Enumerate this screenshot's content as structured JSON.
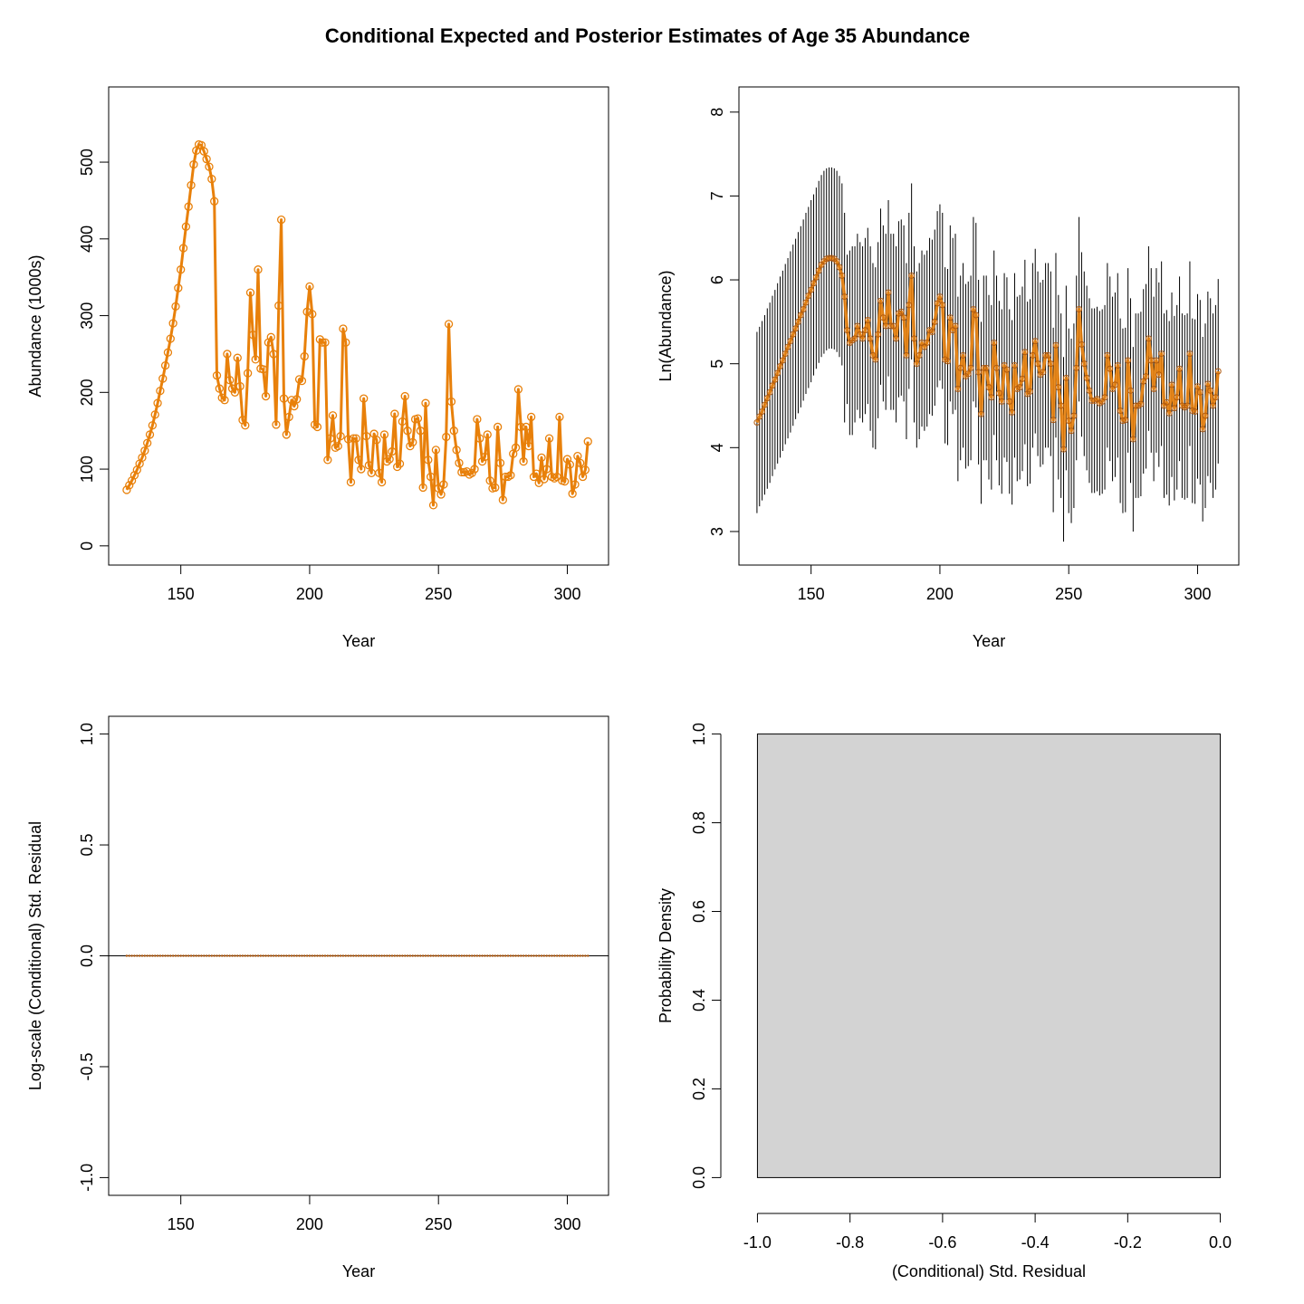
{
  "title": "Conditional Expected and Posterior Estimates of Age 35 Abundance",
  "colors": {
    "series": "#e8800a",
    "series_dark": "#b05a10",
    "interval": "#000000",
    "hist_fill": "#d3d3d3",
    "axis": "#000000"
  },
  "chart_data": [
    {
      "type": "line",
      "xlabel": "Year",
      "ylabel": "Abundance (1000s)",
      "xlim": [
        122,
        316
      ],
      "ylim": [
        -25,
        598
      ],
      "xticks": [
        150,
        200,
        250,
        300
      ],
      "xticklabels": [
        "150",
        "200",
        "250",
        "300"
      ],
      "yticks": [
        0,
        100,
        200,
        300,
        400,
        500
      ],
      "yticklabels": [
        "0",
        "100",
        "200",
        "300",
        "400",
        "500"
      ],
      "marker": "circle-open",
      "x": [
        129,
        130,
        131,
        132,
        133,
        134,
        135,
        136,
        137,
        138,
        139,
        140,
        141,
        142,
        143,
        144,
        145,
        146,
        147,
        148,
        149,
        150,
        151,
        152,
        153,
        154,
        155,
        156,
        157,
        158,
        159,
        160,
        161,
        162,
        163,
        164,
        165,
        166,
        167,
        168,
        169,
        170,
        171,
        172,
        173,
        174,
        175,
        176,
        177,
        178,
        179,
        180,
        181,
        182,
        183,
        184,
        185,
        186,
        187,
        188,
        189,
        190,
        191,
        192,
        193,
        194,
        195,
        196,
        197,
        198,
        199,
        200,
        201,
        202,
        203,
        204,
        205,
        206,
        207,
        208,
        209,
        210,
        211,
        212,
        213,
        214,
        215,
        216,
        217,
        218,
        219,
        220,
        221,
        222,
        223,
        224,
        225,
        226,
        227,
        228,
        229,
        230,
        231,
        232,
        233,
        234,
        235,
        236,
        237,
        238,
        239,
        240,
        241,
        242,
        243,
        244,
        245,
        246,
        247,
        248,
        249,
        250,
        251,
        252,
        253,
        254,
        255,
        256,
        257,
        258,
        259,
        260,
        261,
        262,
        263,
        264,
        265,
        266,
        267,
        268,
        269,
        270,
        271,
        272,
        273,
        274,
        275,
        276,
        277,
        278,
        279,
        280,
        281,
        282,
        283,
        284,
        285,
        286,
        287,
        288,
        289,
        290,
        291,
        292,
        293,
        294,
        295,
        296,
        297,
        298,
        299,
        300,
        301,
        302,
        303,
        304,
        305,
        306,
        307,
        308
      ],
      "y": [
        73,
        79,
        85,
        92,
        99,
        107,
        115,
        124,
        134,
        145,
        157,
        171,
        186,
        202,
        218,
        235,
        252,
        270,
        290,
        312,
        336,
        360,
        388,
        416,
        442,
        470,
        497,
        515,
        523,
        522,
        514,
        504,
        494,
        478,
        449,
        222,
        205,
        193,
        190,
        250,
        216,
        205,
        200,
        245,
        208,
        164,
        157,
        225,
        330,
        275,
        243,
        360,
        231,
        230,
        195,
        265,
        272,
        250,
        158,
        313,
        425,
        192,
        145,
        168,
        190,
        182,
        191,
        217,
        215,
        247,
        305,
        338,
        302,
        158,
        155,
        269,
        265,
        265,
        112,
        140,
        170,
        128,
        130,
        143,
        283,
        265,
        139,
        83,
        140,
        140,
        112,
        100,
        192,
        143,
        105,
        95,
        146,
        138,
        95,
        83,
        145,
        110,
        113,
        123,
        172,
        103,
        107,
        162,
        195,
        150,
        130,
        135,
        165,
        166,
        150,
        76,
        186,
        112,
        90,
        53,
        125,
        75,
        67,
        80,
        142,
        289,
        188,
        150,
        125,
        108,
        96,
        96,
        97,
        93,
        95,
        100,
        165,
        140,
        110,
        116,
        145,
        85,
        75,
        76,
        155,
        108,
        60,
        90,
        90,
        92,
        120,
        128,
        204,
        155,
        110,
        155,
        130,
        168,
        90,
        94,
        82,
        115,
        87,
        100,
        140,
        90,
        88,
        90,
        168,
        85,
        84,
        113,
        106,
        68,
        80,
        117,
        108,
        90,
        99,
        136
      ]
    },
    {
      "type": "line",
      "xlabel": "Year",
      "ylabel": "Ln(Abundance)",
      "xlim": [
        122,
        316
      ],
      "ylim": [
        2.6,
        8.3
      ],
      "xticks": [
        150,
        200,
        250,
        300
      ],
      "xticklabels": [
        "150",
        "200",
        "250",
        "300"
      ],
      "yticks": [
        3,
        4,
        5,
        6,
        7,
        8
      ],
      "yticklabels": [
        "3",
        "4",
        "5",
        "6",
        "7",
        "8"
      ],
      "intervals": "vertical segment per year (lower, upper)",
      "series_ln": [
        4.3,
        4.37,
        4.43,
        4.51,
        4.59,
        4.66,
        4.74,
        4.81,
        4.89,
        4.97,
        5.04,
        5.12,
        5.2,
        5.27,
        5.35,
        5.42,
        5.5,
        5.58,
        5.65,
        5.73,
        5.81,
        5.88,
        5.96,
        6.03,
        6.11,
        6.18,
        6.22,
        6.25,
        6.26,
        6.26,
        6.25,
        6.22,
        6.15,
        6.05,
        5.8,
        5.4,
        5.25,
        5.28,
        5.3,
        5.45,
        5.35,
        5.3,
        5.4,
        5.52,
        5.3,
        5.1,
        5.05,
        5.35,
        5.75,
        5.55,
        5.45,
        5.85,
        5.45,
        5.45,
        5.3,
        5.6,
        5.62,
        5.55,
        5.1,
        5.7,
        6.05,
        5.3,
        5.0,
        5.1,
        5.25,
        5.2,
        5.25,
        5.4,
        5.38,
        5.5,
        5.72,
        5.8,
        5.7,
        5.05,
        5.03,
        5.55,
        5.4,
        5.45,
        4.7,
        4.95,
        5.1,
        4.85,
        4.88,
        4.95,
        5.65,
        5.58,
        4.9,
        4.4,
        4.95,
        4.95,
        4.72,
        4.6,
        5.25,
        4.95,
        4.65,
        4.55,
        4.98,
        4.93,
        4.55,
        4.42,
        4.98,
        4.7,
        4.72,
        4.82,
        5.14,
        4.64,
        4.67,
        5.1,
        5.27,
        5.0,
        4.87,
        4.9,
        5.1,
        5.1,
        5.0,
        4.33,
        5.22,
        4.72,
        4.5,
        3.98,
        4.83,
        4.32,
        4.2,
        4.38,
        4.95,
        5.65,
        5.23,
        5.0,
        4.83,
        4.68,
        4.56,
        4.56,
        4.58,
        4.53,
        4.55,
        4.6,
        5.1,
        4.94,
        4.7,
        4.75,
        4.98,
        4.44,
        4.32,
        4.33,
        5.04,
        4.68,
        4.1,
        4.5,
        4.5,
        4.52,
        4.79,
        4.85,
        5.3,
        5.04,
        4.7,
        5.04,
        4.87,
        5.12,
        4.5,
        4.54,
        4.41,
        4.75,
        4.47,
        4.6,
        4.94,
        4.5,
        4.48,
        4.5,
        5.12,
        4.44,
        4.43,
        4.73,
        4.66,
        4.22,
        4.38,
        4.76,
        4.68,
        4.5,
        4.6,
        4.91
      ],
      "lower": [
        3.22,
        3.3,
        3.37,
        3.44,
        3.51,
        3.58,
        3.66,
        3.74,
        3.81,
        3.88,
        3.96,
        4.04,
        4.11,
        4.18,
        4.26,
        4.34,
        4.41,
        4.48,
        4.56,
        4.64,
        4.71,
        4.78,
        4.86,
        4.94,
        5.01,
        5.08,
        5.12,
        5.16,
        5.18,
        5.18,
        5.17,
        5.14,
        5.08,
        4.98,
        4.3,
        4.52,
        4.15,
        4.15,
        4.3,
        4.45,
        4.35,
        4.3,
        4.4,
        4.52,
        4.2,
        4.0,
        3.98,
        4.35,
        4.75,
        4.55,
        4.45,
        4.85,
        4.45,
        4.45,
        4.3,
        4.6,
        4.62,
        4.55,
        4.1,
        4.7,
        5.05,
        4.3,
        4.0,
        4.1,
        4.25,
        4.2,
        4.25,
        4.4,
        4.38,
        4.5,
        4.72,
        4.8,
        4.7,
        4.05,
        4.03,
        4.55,
        4.4,
        4.45,
        3.6,
        3.85,
        4.0,
        3.75,
        3.78,
        3.85,
        4.55,
        4.48,
        3.8,
        3.33,
        3.85,
        3.85,
        3.62,
        3.5,
        4.15,
        3.85,
        3.55,
        3.45,
        3.88,
        3.83,
        3.45,
        3.32,
        3.88,
        3.6,
        3.62,
        3.72,
        4.04,
        3.54,
        3.57,
        4.0,
        4.17,
        3.9,
        3.77,
        3.8,
        4.0,
        4.0,
        3.9,
        3.23,
        4.12,
        3.62,
        3.4,
        2.88,
        3.73,
        3.22,
        3.1,
        3.28,
        3.85,
        4.55,
        4.13,
        3.9,
        3.73,
        3.58,
        3.46,
        3.46,
        3.48,
        3.43,
        3.45,
        3.5,
        4.0,
        3.84,
        3.6,
        3.65,
        3.88,
        3.34,
        3.22,
        3.23,
        3.94,
        3.58,
        3.0,
        3.4,
        3.4,
        3.42,
        3.69,
        3.75,
        4.2,
        3.94,
        3.6,
        3.94,
        3.77,
        4.02,
        3.4,
        3.44,
        3.31,
        3.65,
        3.37,
        3.5,
        3.84,
        3.4,
        3.38,
        3.4,
        4.02,
        3.34,
        3.33,
        3.63,
        3.56,
        3.12,
        3.28,
        3.66,
        3.58,
        3.4,
        3.5,
        3.81
      ],
      "upper": [
        5.38,
        5.44,
        5.51,
        5.58,
        5.66,
        5.73,
        5.81,
        5.88,
        5.96,
        6.04,
        6.11,
        6.19,
        6.26,
        6.34,
        6.42,
        6.49,
        6.57,
        6.64,
        6.72,
        6.8,
        6.87,
        6.95,
        7.02,
        7.1,
        7.18,
        7.25,
        7.3,
        7.33,
        7.34,
        7.34,
        7.33,
        7.3,
        7.24,
        7.15,
        6.8,
        6.3,
        6.35,
        6.4,
        6.4,
        6.55,
        6.45,
        6.4,
        6.5,
        6.62,
        6.4,
        6.2,
        6.15,
        6.45,
        6.85,
        6.65,
        6.55,
        6.95,
        6.55,
        6.55,
        6.4,
        6.7,
        6.72,
        6.65,
        6.2,
        6.8,
        7.15,
        6.4,
        6.1,
        6.2,
        6.35,
        6.3,
        6.35,
        6.5,
        6.48,
        6.6,
        6.82,
        6.9,
        6.8,
        6.15,
        6.13,
        6.65,
        6.5,
        6.55,
        5.8,
        6.05,
        6.2,
        5.95,
        5.98,
        6.05,
        6.75,
        6.68,
        6.0,
        5.5,
        6.05,
        6.05,
        5.82,
        5.7,
        6.35,
        6.05,
        5.75,
        5.65,
        6.08,
        6.03,
        5.65,
        5.52,
        6.08,
        5.8,
        5.82,
        5.92,
        6.24,
        5.74,
        5.77,
        6.2,
        6.37,
        6.1,
        5.97,
        6.0,
        6.2,
        6.2,
        6.1,
        5.43,
        6.32,
        5.82,
        5.6,
        5.08,
        5.93,
        5.42,
        5.3,
        5.48,
        6.05,
        6.75,
        6.33,
        6.1,
        5.93,
        5.78,
        5.66,
        5.66,
        5.68,
        5.63,
        5.65,
        5.7,
        6.2,
        6.04,
        5.8,
        5.85,
        6.08,
        5.54,
        5.42,
        5.43,
        6.14,
        5.78,
        5.2,
        5.6,
        5.6,
        5.62,
        5.89,
        5.95,
        6.4,
        6.14,
        5.8,
        6.14,
        5.97,
        6.22,
        5.6,
        5.64,
        5.51,
        5.85,
        5.57,
        5.7,
        6.04,
        5.6,
        5.58,
        5.6,
        6.22,
        5.54,
        5.53,
        5.83,
        5.76,
        5.32,
        5.48,
        5.86,
        5.78,
        5.6,
        5.7,
        6.01
      ]
    },
    {
      "type": "scatter",
      "xlabel": "Year",
      "ylabel": "Log-scale (Conditional) Std. Residual",
      "xlim": [
        122,
        316
      ],
      "ylim": [
        -1.08,
        1.08
      ],
      "xticks": [
        150,
        200,
        250,
        300
      ],
      "xticklabels": [
        "150",
        "200",
        "250",
        "300"
      ],
      "yticks": [
        -1.0,
        -0.5,
        0.0,
        0.5,
        1.0
      ],
      "yticklabels": [
        "-1.0",
        "-0.5",
        "0.0",
        "0.5",
        "1.0"
      ],
      "x_range": [
        129,
        308
      ],
      "residual_value": 0,
      "hline": 0
    },
    {
      "type": "bar",
      "xlabel": "(Conditional) Std. Residual",
      "ylabel": "Probability Density",
      "xlim": [
        -1.04,
        0.04
      ],
      "ylim": [
        -0.04,
        1.04
      ],
      "xticks": [
        -1.0,
        -0.8,
        -0.6,
        -0.4,
        -0.2,
        0.0
      ],
      "xticklabels": [
        "-1.0",
        "-0.8",
        "-0.6",
        "-0.4",
        "-0.2",
        "0.0"
      ],
      "yticks": [
        0.0,
        0.2,
        0.4,
        0.6,
        0.8,
        1.0
      ],
      "yticklabels": [
        "0.0",
        "0.2",
        "0.4",
        "0.6",
        "0.8",
        "1.0"
      ],
      "bins": [
        {
          "from": -1.0,
          "to": 0.0,
          "density": 1.0
        }
      ]
    }
  ]
}
